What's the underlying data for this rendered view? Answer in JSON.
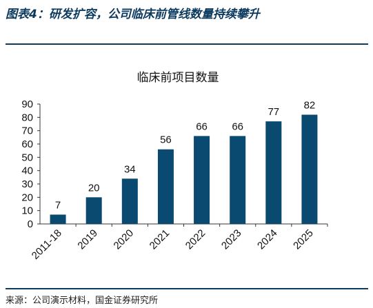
{
  "figure_caption": "图表4：研发扩容，公司临床前管线数量持续攀升",
  "source_note": "来源：公司演示材料，国金证券研究所",
  "colors": {
    "bar": "#0b4a70",
    "rule": "#0b3a5e",
    "axis": "#333333"
  },
  "chart_data": {
    "type": "bar",
    "title": "临床前项目数量",
    "xlabel": "",
    "ylabel": "",
    "categories": [
      "2011-18",
      "2019",
      "2020",
      "2021",
      "2022",
      "2023",
      "2024",
      "2025"
    ],
    "values": [
      7,
      20,
      34,
      56,
      66,
      66,
      77,
      82
    ],
    "ylim": [
      0,
      90
    ],
    "yticks": [
      0,
      10,
      20,
      30,
      40,
      50,
      60,
      70,
      80,
      90
    ],
    "grid": false,
    "legend": "none",
    "data_labels": true
  }
}
